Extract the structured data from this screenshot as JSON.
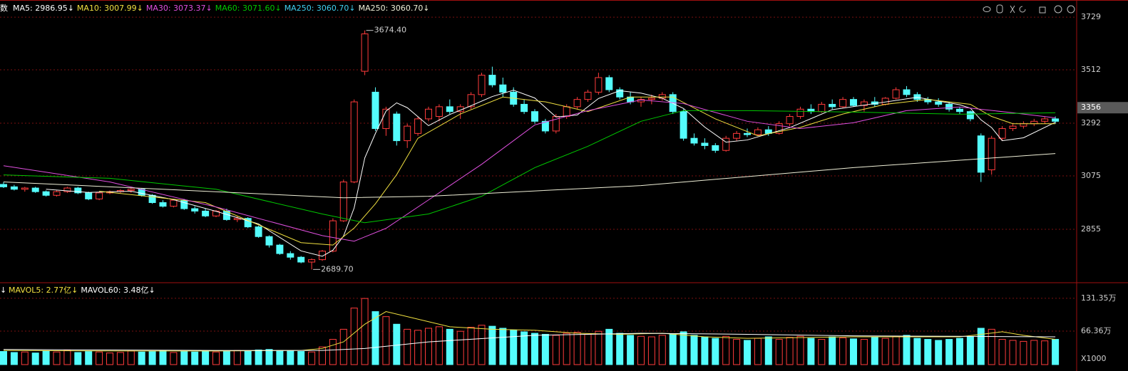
{
  "chart_data": {
    "type": "candlestick",
    "header_prefix": "数",
    "up_color": "#ff3b3b",
    "down_color": "#54fcfc",
    "grid": true,
    "ylim": [
      2635,
      3785
    ],
    "yticks": [
      3729,
      3512,
      3292,
      3075,
      2855
    ],
    "last_price": {
      "value": 3356,
      "label": "3356"
    },
    "high_label": "3674.40",
    "low_label": "2689.70",
    "ohlc": [
      [
        3040,
        3050,
        3025,
        3030
      ],
      [
        3030,
        3038,
        3015,
        3020
      ],
      [
        3020,
        3030,
        3010,
        3025
      ],
      [
        3025,
        3030,
        3005,
        3010
      ],
      [
        3010,
        3015,
        2990,
        2995
      ],
      [
        2995,
        3015,
        2990,
        3010
      ],
      [
        3010,
        3030,
        3005,
        3025
      ],
      [
        3025,
        3030,
        3000,
        3005
      ],
      [
        3005,
        3010,
        2975,
        2980
      ],
      [
        2980,
        3010,
        2975,
        3005
      ],
      [
        3005,
        3015,
        3000,
        3010
      ],
      [
        3010,
        3020,
        3005,
        3015
      ],
      [
        3015,
        3025,
        3005,
        3020
      ],
      [
        3020,
        3025,
        2990,
        2995
      ],
      [
        2995,
        3000,
        2960,
        2965
      ],
      [
        2965,
        2975,
        2945,
        2950
      ],
      [
        2950,
        2980,
        2945,
        2975
      ],
      [
        2975,
        2980,
        2935,
        2940
      ],
      [
        2940,
        2950,
        2920,
        2930
      ],
      [
        2930,
        2940,
        2905,
        2910
      ],
      [
        2910,
        2935,
        2905,
        2930
      ],
      [
        2930,
        2940,
        2890,
        2895
      ],
      [
        2895,
        2910,
        2885,
        2900
      ],
      [
        2900,
        2905,
        2860,
        2865
      ],
      [
        2865,
        2870,
        2820,
        2825
      ],
      [
        2825,
        2830,
        2780,
        2790
      ],
      [
        2790,
        2795,
        2750,
        2755
      ],
      [
        2755,
        2765,
        2730,
        2740
      ],
      [
        2740,
        2745,
        2715,
        2720
      ],
      [
        2720,
        2735,
        2689.7,
        2730
      ],
      [
        2730,
        2770,
        2725,
        2765
      ],
      [
        2765,
        2900,
        2760,
        2890
      ],
      [
        2890,
        3060,
        2885,
        3050
      ],
      [
        3050,
        3390,
        3045,
        3380
      ],
      [
        3506,
        3674.4,
        3490,
        3660
      ],
      [
        3420,
        3440,
        3260,
        3270
      ],
      [
        3270,
        3360,
        3240,
        3350
      ],
      [
        3330,
        3340,
        3200,
        3220
      ],
      [
        3220,
        3290,
        3190,
        3280
      ],
      [
        3250,
        3320,
        3240,
        3310
      ],
      [
        3310,
        3360,
        3300,
        3350
      ],
      [
        3320,
        3370,
        3300,
        3360
      ],
      [
        3360,
        3390,
        3330,
        3340
      ],
      [
        3340,
        3370,
        3310,
        3360
      ],
      [
        3360,
        3420,
        3350,
        3410
      ],
      [
        3410,
        3500,
        3400,
        3490
      ],
      [
        3490,
        3525,
        3440,
        3450
      ],
      [
        3450,
        3480,
        3400,
        3420
      ],
      [
        3420,
        3440,
        3360,
        3370
      ],
      [
        3370,
        3390,
        3330,
        3340
      ],
      [
        3340,
        3350,
        3290,
        3300
      ],
      [
        3300,
        3310,
        3250,
        3260
      ],
      [
        3260,
        3330,
        3250,
        3320
      ],
      [
        3320,
        3370,
        3310,
        3360
      ],
      [
        3360,
        3400,
        3350,
        3390
      ],
      [
        3390,
        3430,
        3380,
        3420
      ],
      [
        3420,
        3500,
        3410,
        3480
      ],
      [
        3480,
        3490,
        3420,
        3430
      ],
      [
        3430,
        3440,
        3390,
        3400
      ],
      [
        3400,
        3420,
        3370,
        3380
      ],
      [
        3380,
        3400,
        3360,
        3390
      ],
      [
        3390,
        3410,
        3370,
        3395
      ],
      [
        3395,
        3420,
        3385,
        3410
      ],
      [
        3410,
        3420,
        3330,
        3340
      ],
      [
        3340,
        3350,
        3220,
        3230
      ],
      [
        3230,
        3250,
        3200,
        3210
      ],
      [
        3210,
        3230,
        3185,
        3200
      ],
      [
        3200,
        3210,
        3170,
        3180
      ],
      [
        3180,
        3240,
        3175,
        3230
      ],
      [
        3230,
        3260,
        3220,
        3250
      ],
      [
        3250,
        3270,
        3235,
        3245
      ],
      [
        3245,
        3275,
        3240,
        3265
      ],
      [
        3265,
        3280,
        3240,
        3250
      ],
      [
        3250,
        3300,
        3245,
        3290
      ],
      [
        3290,
        3330,
        3280,
        3320
      ],
      [
        3320,
        3360,
        3310,
        3350
      ],
      [
        3350,
        3370,
        3330,
        3340
      ],
      [
        3340,
        3380,
        3335,
        3370
      ],
      [
        3370,
        3390,
        3350,
        3360
      ],
      [
        3360,
        3400,
        3355,
        3390
      ],
      [
        3390,
        3400,
        3360,
        3365
      ],
      [
        3365,
        3390,
        3340,
        3380
      ],
      [
        3380,
        3400,
        3360,
        3370
      ],
      [
        3370,
        3400,
        3365,
        3395
      ],
      [
        3395,
        3440,
        3390,
        3430
      ],
      [
        3430,
        3445,
        3400,
        3410
      ],
      [
        3410,
        3420,
        3380,
        3390
      ],
      [
        3390,
        3400,
        3370,
        3380
      ],
      [
        3380,
        3395,
        3360,
        3370
      ],
      [
        3370,
        3380,
        3340,
        3350
      ],
      [
        3350,
        3360,
        3330,
        3340
      ],
      [
        3340,
        3345,
        3300,
        3310
      ],
      [
        3240,
        3250,
        3050,
        3090
      ],
      [
        3100,
        3240,
        3080,
        3230
      ],
      [
        3230,
        3280,
        3220,
        3270
      ],
      [
        3270,
        3290,
        3260,
        3280
      ],
      [
        3280,
        3300,
        3270,
        3290
      ],
      [
        3290,
        3310,
        3280,
        3300
      ],
      [
        3300,
        3320,
        3290,
        3310
      ],
      [
        3310,
        3320,
        3290,
        3300
      ]
    ],
    "ma_series": [
      {
        "legend": "MA5: 2986.95↓",
        "color": "#ffffff",
        "x": [
          4,
          8,
          12,
          16,
          20,
          24,
          28,
          30,
          31,
          32,
          33,
          34,
          35,
          36,
          37,
          38,
          40,
          42,
          44,
          46,
          48,
          50,
          52,
          54,
          56,
          58,
          60,
          62,
          64,
          66,
          68,
          70,
          74,
          78,
          82,
          86,
          90,
          91,
          92,
          93,
          94,
          96,
          99
        ],
        "values": [
          3020,
          3007,
          3012,
          2977,
          2929,
          2877,
          2766,
          2744,
          2769,
          2827,
          2943,
          3149,
          3250,
          3342,
          3376,
          3356,
          3282,
          3328,
          3364,
          3402,
          3428,
          3396,
          3318,
          3326,
          3394,
          3426,
          3416,
          3395,
          3353,
          3276,
          3214,
          3223,
          3274,
          3348,
          3373,
          3399,
          3368,
          3354,
          3306,
          3274,
          3220,
          3232,
          3296
        ]
      },
      {
        "legend": "MA10: 3007.99↓",
        "color": "#f0e040",
        "x": [
          9,
          19,
          28,
          31,
          33,
          35,
          37,
          39,
          43,
          47,
          51,
          55,
          59,
          63,
          67,
          71,
          75,
          79,
          83,
          87,
          91,
          93,
          95,
          99
        ],
        "values": [
          3012,
          2965,
          2800,
          2790,
          2860,
          2960,
          3080,
          3230,
          3330,
          3400,
          3380,
          3340,
          3400,
          3400,
          3310,
          3240,
          3275,
          3330,
          3370,
          3390,
          3370,
          3320,
          3290,
          3290
        ]
      },
      {
        "legend": "MA30: 3073.37↓",
        "color": "#e050e0",
        "x": [
          0,
          10,
          20,
          30,
          33,
          36,
          40,
          45,
          50,
          55,
          60,
          64,
          70,
          75,
          80,
          85,
          90,
          95,
          99
        ],
        "values": [
          3117,
          3050,
          2947,
          2829,
          2806,
          2859,
          2976,
          3123,
          3285,
          3344,
          3388,
          3373,
          3300,
          3270,
          3294,
          3344,
          3359,
          3335,
          3314
        ]
      },
      {
        "legend": "MA60: 3071.60↓",
        "color": "#00c800",
        "x": [
          0,
          10,
          20,
          30,
          34,
          40,
          45,
          50,
          55,
          60,
          64,
          70,
          80,
          90,
          99
        ],
        "values": [
          3079,
          3065,
          3020,
          2918,
          2882,
          2918,
          2991,
          3109,
          3197,
          3300,
          3344,
          3344,
          3338,
          3329,
          3335
        ]
      },
      {
        "legend": "MA250: 3060.70↓",
        "color": "#40d0f0"
      },
      {
        "legend": "MA250: 3060.70↓",
        "color": "#f0f0d8",
        "x": [
          0,
          15,
          32,
          40,
          60,
          80,
          99
        ],
        "values": [
          3050,
          3020,
          2985,
          2991,
          3035,
          3109,
          3167
        ]
      }
    ],
    "volume": {
      "ylim": [
        0,
        158
      ],
      "yticks": [
        {
          "value": 131.35,
          "label": "131.35万"
        },
        {
          "value": 66.36,
          "label": "66.36万"
        }
      ],
      "multiplier_label": "X1000",
      "legend_prefix": "↓",
      "values": [
        26,
        24,
        25,
        23,
        27,
        25,
        28,
        24,
        26,
        25,
        23,
        24,
        27,
        25,
        26,
        28,
        24,
        26,
        25,
        27,
        25,
        26,
        28,
        27,
        29,
        30,
        28,
        27,
        26,
        25,
        35,
        50,
        70,
        112,
        131,
        105,
        95,
        80,
        70,
        68,
        72,
        75,
        70,
        66,
        74,
        78,
        76,
        72,
        68,
        65,
        62,
        60,
        58,
        62,
        64,
        60,
        66,
        70,
        62,
        58,
        56,
        55,
        58,
        60,
        65,
        58,
        55,
        52,
        56,
        50,
        48,
        52,
        55,
        50,
        54,
        56,
        52,
        50,
        55,
        53,
        51,
        50,
        54,
        52,
        56,
        58,
        52,
        50,
        48,
        50,
        52,
        55,
        72,
        70,
        50,
        48,
        46,
        48,
        47,
        50
      ],
      "series": [
        {
          "legend": "MAVOL5: 2.77亿↓",
          "color": "#f0e040",
          "x": [
            0,
            10,
            20,
            28,
            30,
            32,
            34,
            36,
            38,
            42,
            46,
            50,
            54,
            58,
            62,
            66,
            70,
            80,
            90,
            92,
            94,
            96,
            99
          ],
          "values": [
            28,
            27,
            27,
            28,
            32,
            45,
            80,
            105,
            95,
            75,
            70,
            68,
            62,
            60,
            62,
            55,
            52,
            55,
            55,
            60,
            65,
            58,
            50
          ]
        },
        {
          "legend": "MAVOL60: 3.48亿↓",
          "color": "#ffffff",
          "x": [
            0,
            20,
            30,
            34,
            40,
            50,
            60,
            70,
            80,
            90,
            99
          ],
          "values": [
            30,
            28,
            28,
            32,
            45,
            58,
            62,
            60,
            57,
            56,
            55
          ]
        }
      ]
    }
  }
}
